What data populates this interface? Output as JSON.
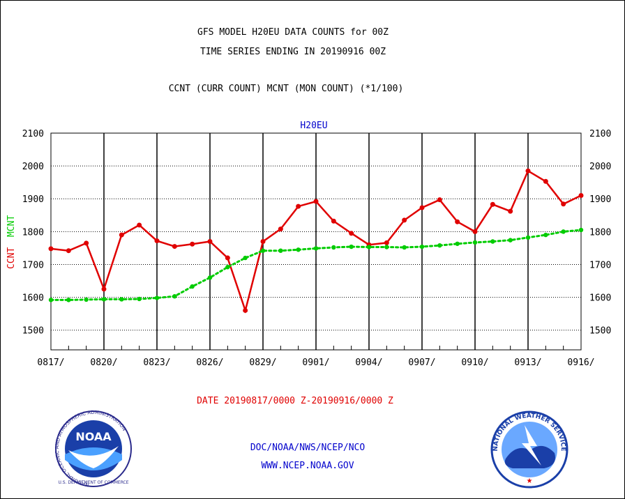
{
  "header": {
    "line1": "GFS MODEL H20EU DATA COUNTS for 00Z",
    "line2": "TIME SERIES ENDING IN 20190916 00Z",
    "line3": "CCNT (CURR COUNT) MCNT (MON COUNT) (*1/100)"
  },
  "footer": {
    "date_range": "DATE 20190817/0000 Z-20190916/0000 Z",
    "org": "DOC/NOAA/NWS/NCEP/NCO",
    "url": "WWW.NCEP.NOAA.GOV"
  },
  "logos": {
    "noaa": {
      "center_text": "NOAA",
      "ring_text": "NATIONAL OCEANIC AND ATMOSPHERIC ADMINISTRATION",
      "bottom_text": "U.S. DEPARTMENT OF COMMERCE"
    },
    "nws": {
      "ring_text": "NATIONAL WEATHER SERVICE"
    }
  },
  "chart_data": {
    "type": "line",
    "title": "H20EU",
    "ylabel_ccnt": "CCNT",
    "ylabel_mcnt": "MCNT",
    "ylim": [
      1440,
      2100
    ],
    "yticks": [
      1500,
      1600,
      1700,
      1800,
      1900,
      2000,
      2100
    ],
    "xtick_labels": [
      "0817/",
      "0820/",
      "0823/",
      "0826/",
      "0829/",
      "0901/",
      "0904/",
      "0907/",
      "0910/",
      "0913/",
      "0916/"
    ],
    "xtick_day_index": [
      0,
      3,
      6,
      9,
      12,
      15,
      18,
      21,
      24,
      27,
      30
    ],
    "grid": true,
    "series": [
      {
        "name": "CCNT",
        "color": "#e00000",
        "style": "solid",
        "values": [
          1748,
          1742,
          1765,
          1625,
          1790,
          1820,
          1772,
          1755,
          1762,
          1770,
          1720,
          1560,
          1770,
          1808,
          1877,
          1892,
          1832,
          1795,
          1760,
          1766,
          1835,
          1873,
          1897,
          1830,
          1800,
          1883,
          1862,
          1985,
          1953,
          1884,
          1910
        ]
      },
      {
        "name": "MCNT",
        "color": "#00cc00",
        "style": "dotted",
        "values": [
          1592,
          1592,
          1593,
          1594,
          1594,
          1595,
          1598,
          1603,
          1633,
          1660,
          1692,
          1720,
          1742,
          1742,
          1745,
          1749,
          1752,
          1754,
          1753,
          1753,
          1752,
          1754,
          1758,
          1763,
          1767,
          1770,
          1774,
          1782,
          1790,
          1800,
          1805
        ]
      }
    ]
  }
}
